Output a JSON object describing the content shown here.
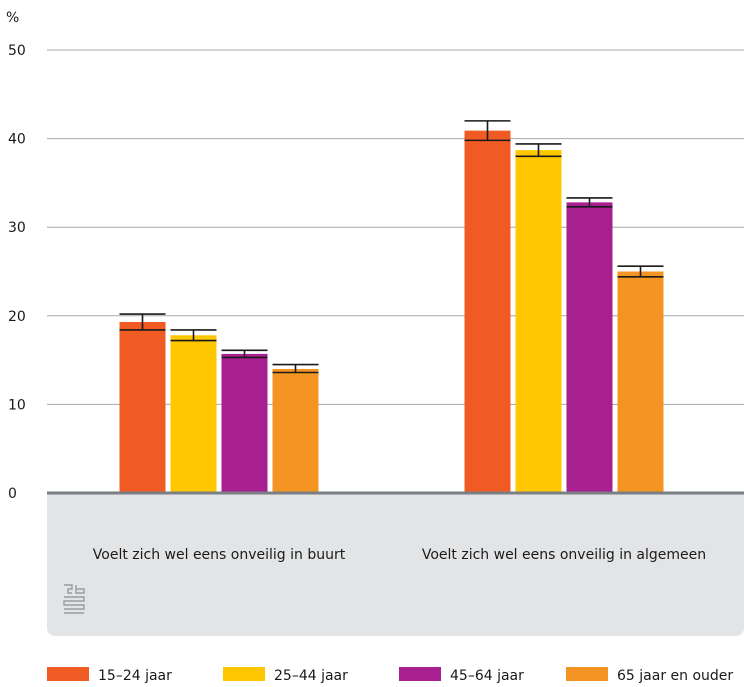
{
  "chart_data": {
    "type": "bar",
    "ylabel": "%",
    "ylim": [
      0,
      50
    ],
    "yticks": [
      0,
      10,
      20,
      30,
      40,
      50
    ],
    "grid": true,
    "legend_position": "bottom",
    "categories": [
      "Voelt zich wel eens onveilig in buurt",
      "Voelt zich wel eens onveilig in algemeen"
    ],
    "series": [
      {
        "name": "15–24 jaar",
        "color": "#f05a23",
        "values": [
          19.3,
          40.9
        ],
        "err_low": [
          18.4,
          39.8
        ],
        "err_high": [
          20.2,
          42.0
        ]
      },
      {
        "name": "25–44 jaar",
        "color": "#ffc700",
        "values": [
          17.8,
          38.7
        ],
        "err_low": [
          17.2,
          38.0
        ],
        "err_high": [
          18.4,
          39.4
        ]
      },
      {
        "name": "45–64 jaar",
        "color": "#a8208f",
        "values": [
          15.7,
          32.8
        ],
        "err_low": [
          15.3,
          32.3
        ],
        "err_high": [
          16.1,
          33.3
        ]
      },
      {
        "name": "65 jaar en ouder",
        "color": "#f39423",
        "values": [
          14.0,
          25.0
        ],
        "err_low": [
          13.6,
          24.4
        ],
        "err_high": [
          14.5,
          25.6
        ]
      }
    ]
  },
  "logo": {
    "name": "cbs-logo",
    "text": "cbs"
  }
}
